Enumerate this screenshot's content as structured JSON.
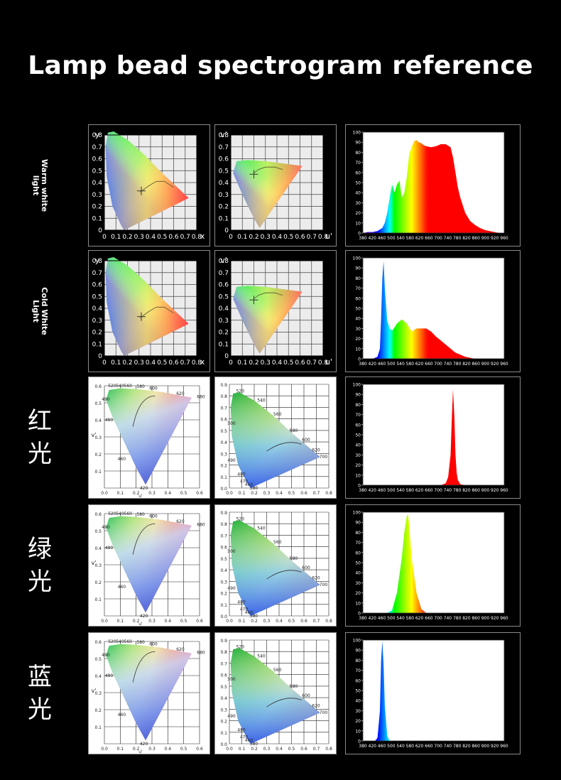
{
  "page": {
    "title": "Lamp bead spectrogram reference",
    "background": "#000000",
    "text_color": "#ffffff"
  },
  "rows": [
    {
      "label": "Warm white\nlight",
      "label_style": "rotated",
      "cie_variant": "xy"
    },
    {
      "label": "Cold White\nLight",
      "label_style": "rotated",
      "cie_variant": "xy"
    },
    {
      "label": "红光",
      "label_style": "cjk",
      "cie_variant": "planckian"
    },
    {
      "label": "绿光",
      "label_style": "cjk",
      "cie_variant": "planckian"
    },
    {
      "label": "蓝光",
      "label_style": "cjk",
      "cie_variant": "planckian"
    }
  ],
  "cie_xy": {
    "y_axis_label": "y",
    "x_axis_label": "x",
    "y_ticks": [
      "0.8",
      "0.7",
      "0.6",
      "0.5",
      "0.4",
      "0.3",
      "0.2",
      "0.1",
      "0"
    ],
    "x_ticks": [
      "0",
      "0.1",
      "0.2",
      "0.3",
      "0.4",
      "0.5",
      "0.6",
      "0.7",
      "0.8"
    ]
  },
  "cie_uv": {
    "y_axis_label": "v'",
    "x_axis_label": "u'",
    "y_ticks": [
      "0.8",
      "0.7",
      "0.6",
      "0.5",
      "0.4",
      "0.3",
      "0.2",
      "0.1",
      "0"
    ],
    "x_ticks": [
      "0",
      "0.1",
      "0.2",
      "0.3",
      "0.4",
      "0.5",
      "0.6",
      "0.7",
      "0.8"
    ]
  },
  "cie_planck_uv": {
    "y_axis_label": "v'",
    "x_axis_label": "u'",
    "y_ticks": [
      "0.6",
      "0.5",
      "0.4",
      "0.3",
      "0.2",
      "0.1"
    ],
    "x_ticks": [
      "0.0",
      "0.1",
      "0.2",
      "0.3",
      "0.4",
      "0.5",
      "0.6"
    ],
    "wavelength_labels": [
      "520",
      "540",
      "560",
      "580",
      "600",
      "620",
      "680",
      "490",
      "480",
      "460",
      "420"
    ]
  },
  "cie_planck_xy": {
    "y_ticks": [
      "0.9",
      "0.8",
      "0.7",
      "0.6",
      "0.5",
      "0.4",
      "0.3",
      "0.2",
      "0.1",
      "0.0"
    ],
    "x_ticks": [
      "0.0",
      "0.1",
      "0.2",
      "0.3",
      "0.4",
      "0.5",
      "0.6",
      "0.7",
      "0.8"
    ],
    "wavelength_labels": [
      "520",
      "540",
      "560",
      "580",
      "600",
      "620",
      "700",
      "500",
      "490",
      "480",
      "470",
      "460",
      "380"
    ]
  },
  "spectrum_axes": {
    "y_ticks": [
      "0",
      "10",
      "20",
      "30",
      "40",
      "50",
      "60",
      "70",
      "80",
      "90",
      "100"
    ],
    "x_ticks": [
      "380",
      "420",
      "460",
      "500",
      "540",
      "580",
      "620",
      "660",
      "700",
      "740",
      "780",
      "820",
      "860",
      "900",
      "920",
      "960"
    ],
    "x_ticks_warm": [
      "380",
      "420",
      "460",
      "500",
      "540",
      "580",
      "620",
      "660",
      "700",
      "740",
      "780",
      "820",
      "860",
      "900",
      "920",
      "960"
    ],
    "ylim": [
      0,
      100
    ]
  },
  "chart_data": [
    {
      "type": "area",
      "row": "Warm white light",
      "xlabel": "",
      "ylabel": "",
      "ylim": [
        0,
        100
      ],
      "x": [
        380,
        400,
        420,
        440,
        460,
        470,
        480,
        490,
        500,
        510,
        520,
        530,
        540,
        550,
        560,
        570,
        580,
        590,
        600,
        610,
        620,
        630,
        640,
        660,
        680,
        700,
        720,
        740,
        750,
        760,
        770,
        780,
        800,
        820,
        840,
        860,
        880,
        900,
        920,
        940
      ],
      "y": [
        0,
        1,
        1,
        2,
        5,
        10,
        20,
        35,
        48,
        40,
        48,
        52,
        35,
        40,
        55,
        78,
        85,
        91,
        92,
        90,
        89,
        87,
        86,
        85,
        86,
        88,
        88,
        85,
        75,
        60,
        45,
        35,
        20,
        12,
        8,
        5,
        3,
        2,
        1,
        0
      ]
    },
    {
      "type": "area",
      "row": "Cold White Light",
      "xlabel": "",
      "ylabel": "",
      "ylim": [
        0,
        100
      ],
      "x": [
        380,
        420,
        440,
        450,
        455,
        460,
        465,
        470,
        480,
        490,
        500,
        510,
        520,
        540,
        560,
        580,
        600,
        620,
        640,
        660,
        680,
        700,
        720,
        740,
        760,
        780,
        800,
        820,
        840
      ],
      "y": [
        0,
        0,
        2,
        10,
        40,
        80,
        97,
        70,
        38,
        30,
        28,
        31,
        35,
        39,
        35,
        27,
        30,
        30,
        30,
        27,
        22,
        18,
        14,
        10,
        6,
        4,
        2,
        1,
        0
      ]
    },
    {
      "type": "area",
      "row": "红光",
      "xlabel": "",
      "ylabel": "",
      "ylim": [
        0,
        100
      ],
      "x": [
        380,
        700,
        720,
        730,
        740,
        745,
        750,
        755,
        760,
        765,
        770,
        780,
        800
      ],
      "y": [
        0,
        0,
        2,
        8,
        30,
        65,
        95,
        70,
        30,
        12,
        5,
        1,
        0
      ]
    },
    {
      "type": "area",
      "row": "绿光",
      "xlabel": "",
      "ylabel": "",
      "ylim": [
        0,
        100
      ],
      "x": [
        380,
        480,
        500,
        520,
        540,
        550,
        560,
        565,
        570,
        580,
        600,
        620,
        640
      ],
      "y": [
        0,
        0,
        3,
        20,
        55,
        80,
        96,
        98,
        88,
        55,
        20,
        4,
        0
      ]
    },
    {
      "type": "area",
      "row": "蓝光",
      "xlabel": "",
      "ylabel": "",
      "ylim": [
        0,
        100
      ],
      "x": [
        380,
        430,
        440,
        450,
        455,
        460,
        465,
        470,
        480,
        490
      ],
      "y": [
        0,
        0,
        3,
        30,
        80,
        99,
        75,
        35,
        5,
        0
      ]
    }
  ]
}
